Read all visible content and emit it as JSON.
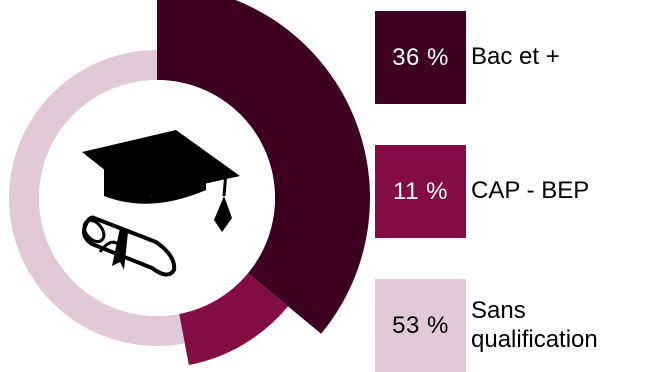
{
  "chart_data": {
    "type": "pie",
    "title": "",
    "categories": [
      "Bac et +",
      "CAP - BEP",
      "Sans qualification"
    ],
    "values": [
      36,
      11,
      53
    ],
    "value_labels": [
      "36 %",
      "11 %",
      "53 %"
    ],
    "colors": [
      "#3d0022",
      "#840c45",
      "#e2c9d7"
    ],
    "label_colors": [
      "#ffffff",
      "#ffffff",
      "#000000"
    ],
    "legend_position": "right",
    "center_icon": "graduation-cap-diploma-icon"
  }
}
